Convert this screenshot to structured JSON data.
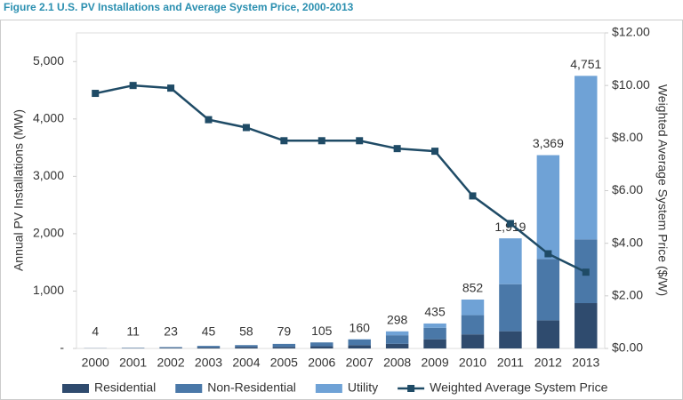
{
  "chart_data": {
    "type": "stacked-bar-line",
    "title": "Figure 2.1  U.S. PV Installations and Average System Price, 2000-2013",
    "y_label": "Annual PV Installations (MW)",
    "y2_label": "Weighted Average System Price ($/W)",
    "categories": [
      "2000",
      "2001",
      "2002",
      "2003",
      "2004",
      "2005",
      "2006",
      "2007",
      "2008",
      "2009",
      "2010",
      "2011",
      "2012",
      "2013"
    ],
    "series": [
      {
        "name": "Residential",
        "color": "#2f4b6e",
        "kind": "bar",
        "values": [
          2,
          5,
          10,
          18,
          27,
          27,
          38,
          57,
          80,
          160,
          245,
          300,
          490,
          790
        ]
      },
      {
        "name": "Non-Residential",
        "color": "#4a78a8",
        "kind": "bar",
        "values": [
          2,
          6,
          13,
          27,
          31,
          52,
          67,
          98,
          150,
          200,
          335,
          820,
          1070,
          1110
        ]
      },
      {
        "name": "Utility",
        "color": "#6fa2d6",
        "kind": "bar",
        "values": [
          0,
          0,
          0,
          0,
          0,
          0,
          0,
          5,
          68,
          75,
          272,
          799,
          1809,
          2851
        ]
      },
      {
        "name": "Weighted Average System Price",
        "color": "#1f4b66",
        "kind": "line",
        "axis": "y2",
        "values": [
          9.7,
          10.0,
          9.9,
          8.7,
          8.4,
          7.9,
          7.9,
          7.9,
          7.6,
          7.5,
          5.8,
          4.75,
          3.6,
          2.9
        ]
      }
    ],
    "totals": {
      "values": [
        4,
        11,
        23,
        45,
        58,
        79,
        105,
        160,
        298,
        435,
        852,
        1919,
        3369,
        4751
      ],
      "value_labels": [
        "4",
        "11",
        "23",
        "45",
        "58",
        "79",
        "105",
        "160",
        "298",
        "435",
        "852",
        "1,919",
        "3,369",
        "4,751"
      ]
    },
    "ylim": [
      0,
      5500
    ],
    "yticks": [
      {
        "value": 0,
        "label": "-"
      },
      {
        "value": 1000,
        "label": "1,000"
      },
      {
        "value": 2000,
        "label": "2,000"
      },
      {
        "value": 3000,
        "label": "3,000"
      },
      {
        "value": 4000,
        "label": "4,000"
      },
      {
        "value": 5000,
        "label": "5,000"
      }
    ],
    "y2lim": [
      0,
      12
    ],
    "y2ticks": [
      {
        "value": 0,
        "label": "$0.00"
      },
      {
        "value": 2,
        "label": "$2.00"
      },
      {
        "value": 4,
        "label": "$4.00"
      },
      {
        "value": 6,
        "label": "$6.00"
      },
      {
        "value": 8,
        "label": "$8.00"
      },
      {
        "value": 10,
        "label": "$10.00"
      },
      {
        "value": 12,
        "label": "$12.00"
      }
    ],
    "grid": false,
    "legend": "bottom"
  }
}
